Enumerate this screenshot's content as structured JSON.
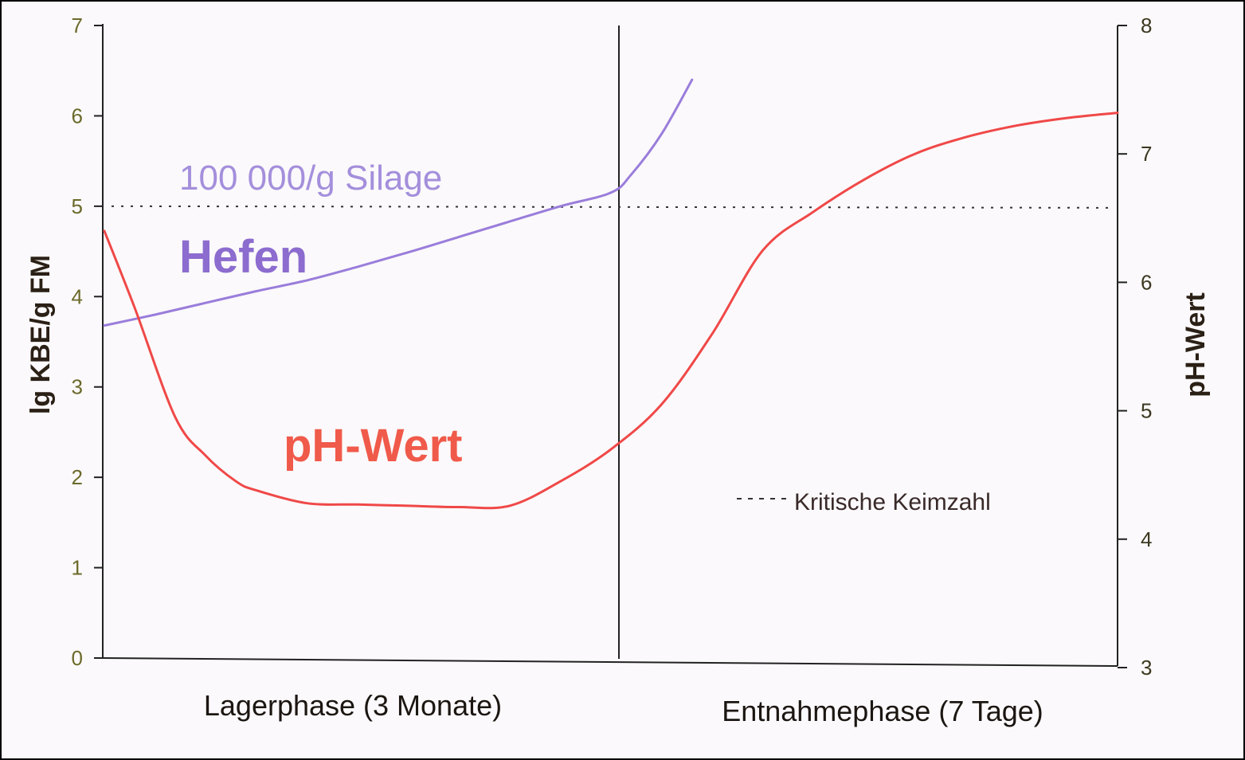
{
  "chart_data": {
    "type": "line",
    "left_axis": {
      "label": "lg KBE/g FM",
      "ylim": [
        0,
        7
      ],
      "ticks": [
        "0",
        "1",
        "2",
        "3",
        "4",
        "5",
        "6",
        "7"
      ]
    },
    "right_axis": {
      "label": "pH-Wert",
      "ylim": [
        3,
        8
      ],
      "ticks": [
        "3",
        "4",
        "5",
        "6",
        "7",
        "8"
      ]
    },
    "x_phases": [
      "Lagerphase (3 Monate)",
      "Entnahmephase (7 Tage)"
    ],
    "critical_level": 5,
    "series": [
      {
        "name": "Hefen",
        "axis": "left",
        "color": "#9a7ddb",
        "x": [
          0,
          0.05,
          0.1,
          0.15,
          0.2,
          0.25,
          0.3,
          0.35,
          0.4,
          0.45,
          0.5,
          0.52,
          0.55,
          0.58
        ],
        "y": [
          3.68,
          3.8,
          3.93,
          4.06,
          4.18,
          4.33,
          4.49,
          4.66,
          4.83,
          5.0,
          5.15,
          5.35,
          5.8,
          6.4
        ]
      },
      {
        "name": "pH-Wert",
        "axis": "right",
        "color": "#f04848",
        "x": [
          0,
          0.03,
          0.07,
          0.1,
          0.13,
          0.15,
          0.2,
          0.25,
          0.3,
          0.35,
          0.4,
          0.45,
          0.5,
          0.55,
          0.6,
          0.65,
          0.7,
          0.75,
          0.8,
          0.85,
          0.9,
          0.95,
          1.0
        ],
        "y": [
          6.4,
          5.8,
          4.95,
          4.65,
          4.45,
          4.38,
          4.28,
          4.27,
          4.26,
          4.25,
          4.26,
          4.45,
          4.7,
          5.05,
          5.6,
          6.25,
          6.55,
          6.8,
          7.0,
          7.13,
          7.22,
          7.28,
          7.32
        ]
      }
    ],
    "annotations": [
      "100 000/g Silage",
      "Hefen",
      "pH-Wert"
    ],
    "legend": {
      "entry": "Kritische Keimzahl",
      "style": "dotted",
      "placement": "bottom-right"
    },
    "phase_divider": true
  }
}
